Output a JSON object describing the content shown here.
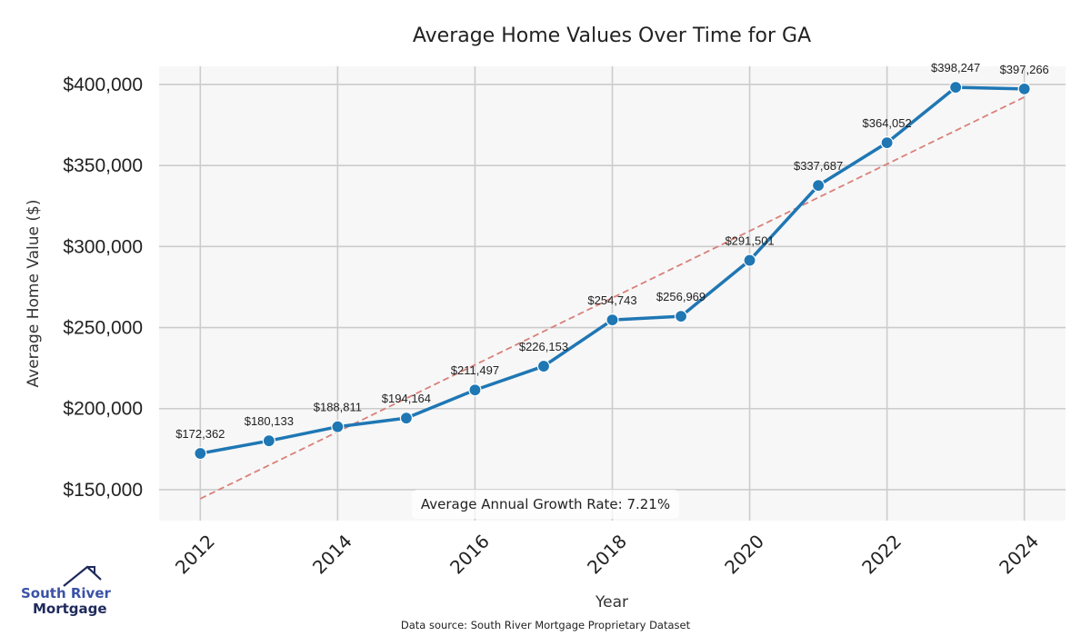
{
  "chart_data": {
    "type": "line",
    "title": "Average Home Values Over Time for GA",
    "xlabel": "Year",
    "ylabel": "Average Home Value ($)",
    "x": [
      2012,
      2013,
      2014,
      2015,
      2016,
      2017,
      2018,
      2019,
      2020,
      2021,
      2022,
      2023,
      2024
    ],
    "series": [
      {
        "name": "Average Home Value",
        "color": "#1f77b4",
        "values": [
          172362,
          180133,
          188811,
          194164,
          211497,
          226153,
          254743,
          256969,
          291501,
          337687,
          364052,
          398247,
          397266
        ],
        "labels": [
          "$172,362",
          "$180,133",
          "$188,811",
          "$194,164",
          "$211,497",
          "$226,153",
          "$254,743",
          "$256,969",
          "$291,501",
          "$337,687",
          "$364,052",
          "$398,247",
          "$397,266"
        ]
      }
    ],
    "trendline": {
      "name": "Trend",
      "color": "#d9807a",
      "style": "dashed",
      "x": [
        2012,
        2024
      ],
      "values": [
        144400,
        392200
      ]
    },
    "xticks": [
      2012,
      2014,
      2016,
      2018,
      2020,
      2022,
      2024
    ],
    "xtick_labels": [
      "2012",
      "2014",
      "2016",
      "2018",
      "2020",
      "2022",
      "2024"
    ],
    "yticks": [
      150000,
      200000,
      250000,
      300000,
      350000,
      400000
    ],
    "ytick_labels": [
      "$150,000",
      "$200,000",
      "$250,000",
      "$300,000",
      "$350,000",
      "$400,000"
    ],
    "xlim": [
      2011.4,
      2024.6
    ],
    "ylim": [
      130900,
      411200
    ],
    "grid": true,
    "annotation": "Average Annual Growth Rate: 7.21%",
    "footnote": "Data source: South River Mortgage Proprietary Dataset",
    "background": "#f7f7f7",
    "grid_color": "#cccccc"
  },
  "logo": {
    "line1": "South River",
    "line2": "Mortgage"
  }
}
